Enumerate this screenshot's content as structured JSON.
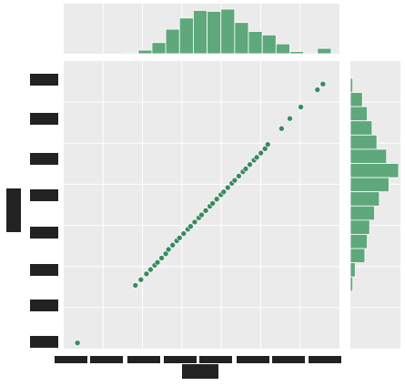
{
  "chart_data": {
    "type": "scatter",
    "title": "",
    "xlabel": "",
    "ylabel": "",
    "grid": true,
    "marginal": "histogram",
    "xlim": [
      0,
      1
    ],
    "ylim": [
      0,
      1
    ],
    "point_color": "#3a8a5e",
    "hist_color": "#5fa87c",
    "panel_color": "#ebebeb",
    "points": [
      [
        0.05,
        0.02
      ],
      [
        0.26,
        0.22
      ],
      [
        0.28,
        0.24
      ],
      [
        0.3,
        0.26
      ],
      [
        0.315,
        0.275
      ],
      [
        0.33,
        0.29
      ],
      [
        0.34,
        0.3
      ],
      [
        0.355,
        0.315
      ],
      [
        0.37,
        0.33
      ],
      [
        0.38,
        0.345
      ],
      [
        0.395,
        0.36
      ],
      [
        0.41,
        0.375
      ],
      [
        0.42,
        0.385
      ],
      [
        0.435,
        0.4
      ],
      [
        0.45,
        0.415
      ],
      [
        0.46,
        0.425
      ],
      [
        0.475,
        0.44
      ],
      [
        0.49,
        0.455
      ],
      [
        0.5,
        0.465
      ],
      [
        0.515,
        0.48
      ],
      [
        0.53,
        0.495
      ],
      [
        0.54,
        0.505
      ],
      [
        0.555,
        0.52
      ],
      [
        0.57,
        0.535
      ],
      [
        0.58,
        0.545
      ],
      [
        0.595,
        0.56
      ],
      [
        0.61,
        0.575
      ],
      [
        0.62,
        0.585
      ],
      [
        0.635,
        0.6
      ],
      [
        0.65,
        0.615
      ],
      [
        0.66,
        0.625
      ],
      [
        0.675,
        0.64
      ],
      [
        0.69,
        0.655
      ],
      [
        0.7,
        0.665
      ],
      [
        0.715,
        0.68
      ],
      [
        0.73,
        0.695
      ],
      [
        0.74,
        0.71
      ],
      [
        0.79,
        0.765
      ],
      [
        0.82,
        0.8
      ],
      [
        0.86,
        0.84
      ],
      [
        0.92,
        0.9
      ],
      [
        0.94,
        0.92
      ]
    ],
    "top_hist": [
      0.02,
      0.08,
      0.25,
      0.55,
      0.8,
      0.97,
      0.95,
      1.0,
      0.7,
      0.5,
      0.42,
      0.22,
      0.05,
      0.02,
      0.12
    ],
    "right_hist": [
      0.05,
      0.25,
      0.35,
      0.45,
      0.55,
      0.75,
      1.0,
      0.8,
      0.6,
      0.5,
      0.4,
      0.35,
      0.3,
      0.1,
      0.05
    ]
  }
}
